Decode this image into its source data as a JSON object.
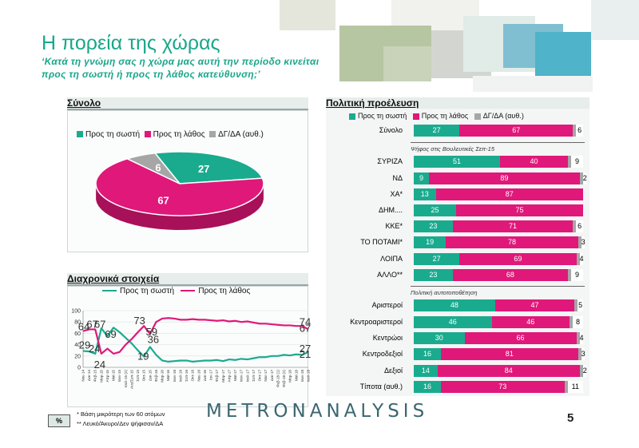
{
  "title": "Η πορεία της χώρας",
  "subtitle_line1": "‘Κατά τη γνώμη σας η χώρα μας αυτή την περίοδο κινείται",
  "subtitle_line2": "προς τη σωστή ή προς τη λάθος κατεύθυνση;’",
  "colors": {
    "correct": "#1aab8f",
    "wrong": "#e0187a",
    "dk": "#a6a6a6"
  },
  "panels": {
    "total": "Σύνολο",
    "trend": "Διαχρονικά στοιχεία",
    "political": "Πολιτική προέλευση"
  },
  "chart_data": [
    {
      "type": "pie",
      "legend": [
        "Προς τη σωστή",
        "Προς τη λάθος",
        "ΔΓ/ΔΑ (αυθ.)"
      ],
      "slices": [
        {
          "name": "Προς τη σωστή",
          "value": 27
        },
        {
          "name": "Προς τη λάθος",
          "value": 67
        },
        {
          "name": "ΔΓ/ΔΑ (αυθ.)",
          "value": 6
        }
      ]
    },
    {
      "type": "line",
      "ylim": [
        0,
        100
      ],
      "yticks": [
        "0",
        "20",
        "40",
        "60",
        "80",
        "100"
      ],
      "x": [
        "Νοε-14",
        "Δεκ-14",
        "Φεβ-15",
        "Μαρ-15",
        "Απρ-15",
        "Μαϊ-15",
        "Ιουν-15",
        "Ιουλ-15 (2)",
        "Αυγ/Σεπ-15",
        "Σεπ-15",
        "Οκτ-15",
        "Δεκ-15",
        "Φεβ-16",
        "Μαρ-16",
        "Μαϊ-16",
        "Ιουν-16",
        "Ιουλ-16",
        "Σεπ-16",
        "Οκτ-16",
        "Νοε-16",
        "Δεκ-16",
        "Ιαν-17",
        "Φεβ-17",
        "Μαρ-17",
        "Απρ-17",
        "Μαϊ-17",
        "Ιουν-17",
        "Ιουλ-17",
        "Σεπ-17",
        "Οκτ-17",
        "Νοε-17",
        "Δεκ-17",
        "Φεβ-18 (1)",
        "Φεβ-18 (2)",
        "Μαρ-18",
        "Μαϊ-18",
        "Ιουν-18",
        "Ιουλ-18"
      ],
      "series": [
        {
          "name": "Προς τη σωστή",
          "values": [
            29,
            28,
            24,
            69,
            55,
            70,
            62,
            52,
            42,
            30,
            19,
            36,
            22,
            12,
            10,
            11,
            12,
            12,
            10,
            11,
            12,
            12,
            13,
            11,
            14,
            13,
            15,
            14,
            16,
            18,
            18,
            20,
            20,
            22,
            21,
            23,
            22,
            27
          ]
        },
        {
          "name": "Προς τη λάθος",
          "values": [
            64,
            67,
            67,
            24,
            33,
            24,
            27,
            40,
            50,
            62,
            73,
            59,
            80,
            86,
            87,
            86,
            84,
            84,
            85,
            84,
            84,
            83,
            82,
            83,
            81,
            82,
            80,
            81,
            79,
            77,
            77,
            76,
            75,
            74,
            74,
            73,
            73,
            67
          ]
        }
      ],
      "labels": {
        "correct_first": "29",
        "correct_s2": "24",
        "correct_s3": "24",
        "correct_s4": "19",
        "correct_s5": "36",
        "wrong_first": "64",
        "wrong_s2": "67",
        "wrong_s3": "67",
        "wrong_s4": "69",
        "wrong_s5": "73",
        "wrong_s6": "59",
        "end_wrong_top": "74",
        "end_wrong": "67",
        "end_correct_top": "27",
        "end_correct": "21"
      }
    },
    {
      "type": "bar",
      "stacked": true,
      "legend": [
        "Προς τη σωστή",
        "Προς τη λάθος",
        "ΔΓ/ΔΑ (αυθ.)"
      ],
      "rows": [
        {
          "label": "Σύνολο",
          "values": [
            27,
            67,
            6
          ]
        },
        {
          "label": "ΣΥΡΙΖΑ",
          "values": [
            51,
            40,
            9
          ]
        },
        {
          "label": "ΝΔ",
          "values": [
            9,
            89,
            2
          ]
        },
        {
          "label": "ΧΑ*",
          "values": [
            13,
            87,
            0
          ]
        },
        {
          "label": "ΔΗΜ....",
          "values": [
            25,
            75,
            0
          ]
        },
        {
          "label": "ΚΚΕ*",
          "values": [
            23,
            71,
            6
          ]
        },
        {
          "label": "ΤΟ ΠΟΤΑΜΙ*",
          "values": [
            19,
            78,
            3
          ]
        },
        {
          "label": "ΛΟΙΠΑ",
          "values": [
            27,
            69,
            4
          ]
        },
        {
          "label": "ΑΛΛΟ**",
          "values": [
            23,
            68,
            9
          ]
        },
        {
          "label": "Αριστεροί",
          "values": [
            48,
            47,
            5
          ]
        },
        {
          "label": "Κεντροαριστεροί",
          "values": [
            46,
            46,
            8
          ]
        },
        {
          "label": "Κεντρώοι",
          "values": [
            30,
            66,
            4
          ]
        },
        {
          "label": "Κεντροδεξιοί",
          "values": [
            16,
            81,
            3
          ]
        },
        {
          "label": "Δεξιοί",
          "values": [
            14,
            84,
            2
          ]
        },
        {
          "label": "Τίποτα (αυθ.)",
          "values": [
            16,
            73,
            11
          ]
        }
      ],
      "section_notes": [
        "Ψήφος στις Βουλευτικές Σεπ-15",
        "Πολιτική αυτοτοποθέτηση"
      ]
    }
  ],
  "footer": {
    "badge": "%",
    "note1": "*  Βάση μικρότερη των 60 ατόμων",
    "note2": "** Λευκό/Άκυρο/Δεν ψήφισαν/ΔΑ",
    "logo": "METRONANALYSIS",
    "page": "5"
  }
}
